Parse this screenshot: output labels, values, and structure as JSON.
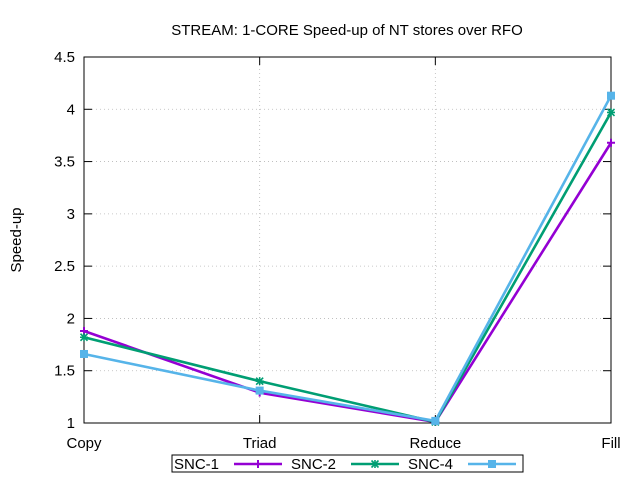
{
  "chart_data": {
    "type": "line",
    "title": "STREAM: 1-CORE Speed-up of NT stores over RFO",
    "xlabel": "",
    "ylabel": "Speed-up",
    "categories": [
      "Copy",
      "Triad",
      "Reduce",
      "Fill"
    ],
    "ylim": [
      1,
      4.5
    ],
    "yticks": [
      "1",
      "1.5",
      "2",
      "2.5",
      "3",
      "3.5",
      "4",
      "4.5"
    ],
    "grid": true,
    "legend_position": "bottom-center",
    "series": [
      {
        "name": "SNC-1",
        "values": [
          1.88,
          1.29,
          1.01,
          3.68
        ],
        "color": "#9400d3"
      },
      {
        "name": "SNC-2",
        "values": [
          1.82,
          1.4,
          1.01,
          3.97
        ],
        "color": "#009e73"
      },
      {
        "name": "SNC-4",
        "values": [
          1.66,
          1.31,
          1.02,
          4.13
        ],
        "color": "#56b4e9"
      }
    ]
  }
}
